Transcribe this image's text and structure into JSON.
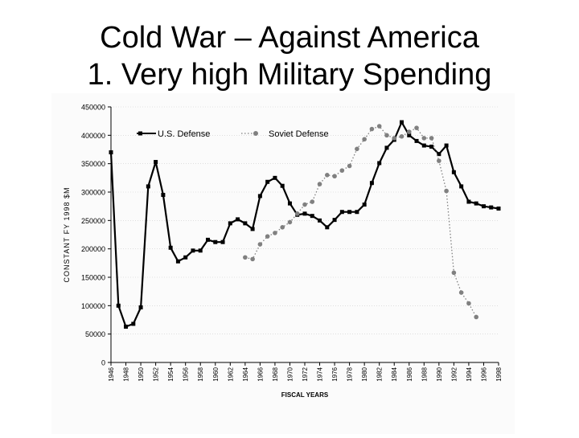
{
  "slide": {
    "title_line1": "Cold War – Against America",
    "title_line2": "1. Very high Military Spending"
  },
  "chart_data": {
    "type": "line",
    "title": "",
    "xlabel": "FISCAL YEARS",
    "ylabel": "CONSTANT FY 1998 $M",
    "ylim": [
      0,
      450000
    ],
    "yticks": [
      0,
      50000,
      100000,
      150000,
      200000,
      250000,
      300000,
      350000,
      400000,
      450000
    ],
    "xlim": [
      1946,
      1998
    ],
    "xticks": [
      1946,
      1948,
      1950,
      1952,
      1954,
      1956,
      1958,
      1960,
      1962,
      1964,
      1966,
      1968,
      1970,
      1972,
      1974,
      1976,
      1978,
      1980,
      1982,
      1984,
      1986,
      1988,
      1990,
      1992,
      1994,
      1996,
      1998
    ],
    "legend": {
      "placement": "top"
    },
    "series": [
      {
        "name": "U.S. Defense",
        "style": "solid-square",
        "color": "#000000",
        "x": [
          1946,
          1947,
          1948,
          1949,
          1950,
          1951,
          1952,
          1953,
          1954,
          1955,
          1956,
          1957,
          1958,
          1959,
          1960,
          1961,
          1962,
          1963,
          1964,
          1965,
          1966,
          1967,
          1968,
          1969,
          1970,
          1971,
          1972,
          1973,
          1974,
          1975,
          1976,
          1977,
          1978,
          1979,
          1980,
          1981,
          1982,
          1983,
          1984,
          1985,
          1986,
          1987,
          1988,
          1989,
          1990,
          1991,
          1992,
          1993,
          1994,
          1995,
          1996,
          1997,
          1998
        ],
        "values": [
          370000,
          100000,
          63000,
          68000,
          97000,
          310000,
          353000,
          295000,
          202000,
          178000,
          185000,
          197000,
          197000,
          216000,
          212000,
          212000,
          245000,
          252000,
          245000,
          235000,
          293000,
          318000,
          325000,
          311000,
          280000,
          260000,
          262000,
          258000,
          250000,
          238000,
          251000,
          265000,
          265000,
          265000,
          278000,
          316000,
          351000,
          378000,
          392000,
          423000,
          400000,
          390000,
          382000,
          380000,
          367000,
          382000,
          335000,
          310000,
          283000,
          280000,
          275000,
          273000,
          271000
        ]
      },
      {
        "name": "Soviet Defense",
        "style": "dotted-circle",
        "color": "#808080",
        "x": [
          1964,
          1965,
          1966,
          1967,
          1968,
          1969,
          1970,
          1971,
          1972,
          1973,
          1974,
          1975,
          1976,
          1977,
          1978,
          1979,
          1980,
          1981,
          1982,
          1983,
          1984,
          1985,
          1986,
          1987,
          1988,
          1989,
          1990,
          1991,
          1992,
          1993,
          1994,
          1995
        ],
        "values": [
          185000,
          182000,
          208000,
          222000,
          228000,
          238000,
          247000,
          262000,
          278000,
          283000,
          314000,
          330000,
          328000,
          338000,
          346000,
          376000,
          393000,
          411000,
          416000,
          400000,
          395000,
          398000,
          406000,
          413000,
          395000,
          395000,
          355000,
          302000,
          158000,
          123000,
          104000,
          80000
        ]
      }
    ]
  }
}
